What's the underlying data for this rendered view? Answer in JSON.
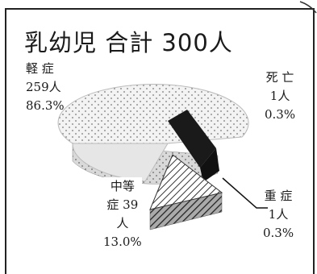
{
  "chart_data": {
    "type": "pie",
    "title": "乳幼児 合計 300人",
    "slices": [
      {
        "name": "軽 症",
        "value": 259,
        "count_label": "259人",
        "percent": 86.3,
        "percent_label": "86.3%",
        "pattern": "dots"
      },
      {
        "name": "死 亡",
        "value": 1,
        "count_label": "1人",
        "percent": 0.3,
        "percent_label": "0.3%",
        "pattern": "solid-dark"
      },
      {
        "name": "重 症",
        "value": 1,
        "count_label": "1人",
        "percent": 0.3,
        "percent_label": "0.3%",
        "pattern": "solid-dark"
      },
      {
        "name": "中等症",
        "name_line1": "中等",
        "name_line2": "症 39",
        "name_line3": "人",
        "value": 39,
        "percent": 13.0,
        "percent_label": "13.0%",
        "pattern": "hatch"
      }
    ]
  }
}
